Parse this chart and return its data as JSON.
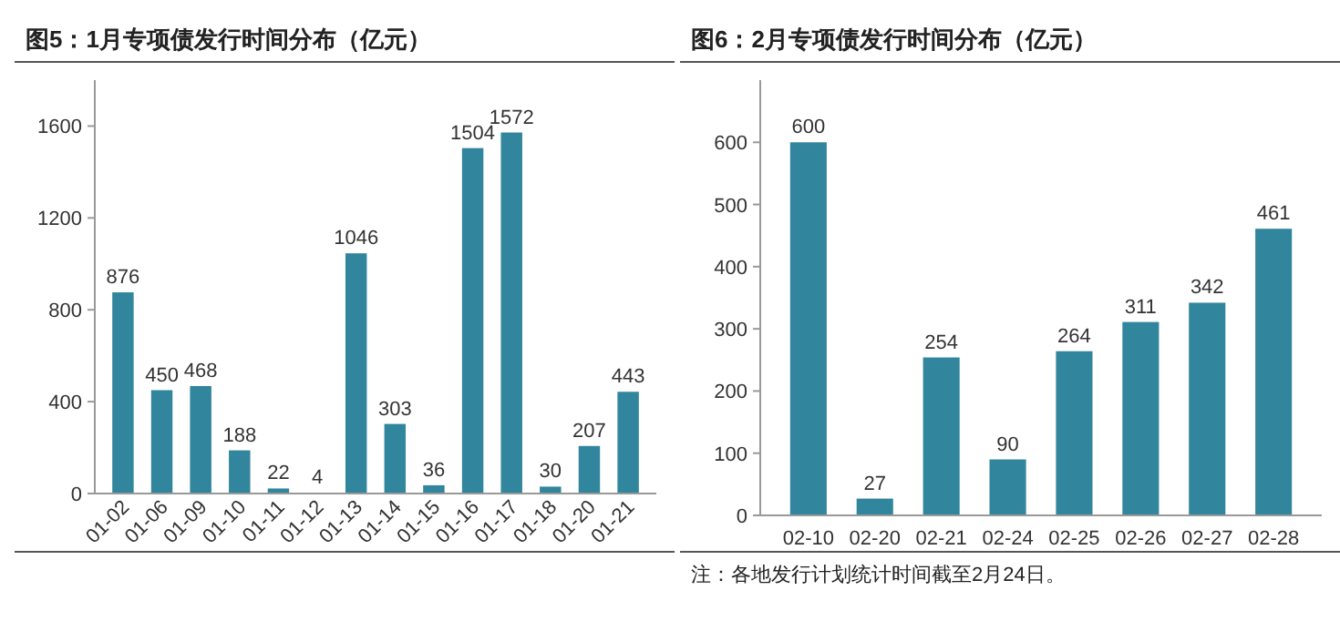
{
  "chart_data": [
    {
      "type": "bar",
      "title": "图5：1月专项债发行时间分布（亿元）",
      "categories": [
        "01-02",
        "01-06",
        "01-09",
        "01-10",
        "01-11",
        "01-12",
        "01-13",
        "01-14",
        "01-15",
        "01-16",
        "01-17",
        "01-18",
        "01-20",
        "01-21"
      ],
      "values": [
        876,
        450,
        468,
        188,
        22,
        4,
        1046,
        303,
        36,
        1504,
        1572,
        30,
        207,
        443
      ],
      "color": "#31859c",
      "ylim": [
        0,
        1800
      ],
      "yticks": [
        0,
        400,
        800,
        1200,
        1600
      ],
      "data_labels": true,
      "grid": false
    },
    {
      "type": "bar",
      "title": "图6：2月专项债发行时间分布（亿元）",
      "categories": [
        "02-10",
        "02-20",
        "02-21",
        "02-24",
        "02-25",
        "02-26",
        "02-27",
        "02-28"
      ],
      "values": [
        600,
        27,
        254,
        90,
        264,
        311,
        342,
        461
      ],
      "color": "#31859c",
      "ylim": [
        0,
        700
      ],
      "yticks": [
        0,
        100,
        200,
        300,
        400,
        500,
        600
      ],
      "data_labels": true,
      "grid": false,
      "annotations": [
        "注：各地发行计划统计时间截至2月24日。"
      ]
    }
  ]
}
